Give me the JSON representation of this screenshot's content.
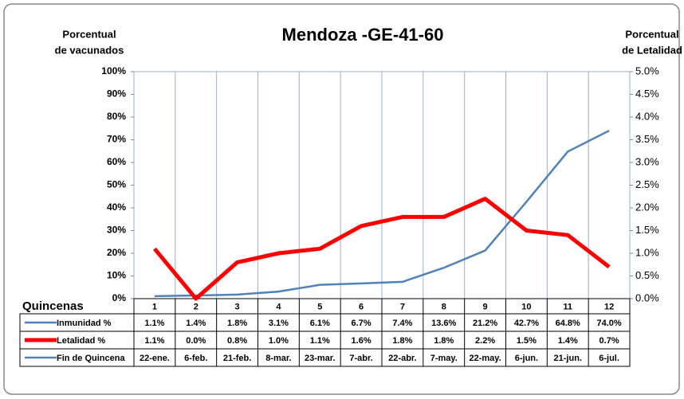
{
  "chart_data": {
    "type": "line",
    "title": "Mendoza -GE-41-60",
    "y_label_lines": [
      "Porcentual",
      "de vacunados"
    ],
    "y2_label_lines": [
      "Porcentual",
      "de Letalidad"
    ],
    "x_label": "Quincenas",
    "categories": [
      "1",
      "2",
      "3",
      "4",
      "5",
      "6",
      "7",
      "8",
      "9",
      "10",
      "11",
      "12"
    ],
    "series": [
      {
        "name": "Inmunidad  %",
        "color": "#4f81bd",
        "axis": "y",
        "values": [
          1.1,
          1.4,
          1.8,
          3.1,
          6.1,
          6.7,
          7.4,
          13.6,
          21.2,
          42.7,
          64.8,
          74.0
        ],
        "value_labels": [
          "1.1%",
          "1.4%",
          "1.8%",
          "3.1%",
          "6.1%",
          "6.7%",
          "7.4%",
          "13.6%",
          "21.2%",
          "42.7%",
          "64.8%",
          "74.0%"
        ]
      },
      {
        "name": "Letalidad %",
        "color": "#ff0000",
        "axis": "y2",
        "values": [
          1.1,
          0.0,
          0.8,
          1.0,
          1.1,
          1.6,
          1.8,
          1.8,
          2.2,
          1.5,
          1.4,
          0.7
        ],
        "value_labels": [
          "1.1%",
          "0.0%",
          "0.8%",
          "1.0%",
          "1.1%",
          "1.6%",
          "1.8%",
          "1.8%",
          "2.2%",
          "1.5%",
          "1.4%",
          "0.7%"
        ]
      }
    ],
    "date_row": {
      "name": "Fin de Quincena",
      "color": "#4f81bd",
      "values": [
        "22-ene.",
        "6-feb.",
        "21-feb.",
        "8-mar.",
        "23-mar.",
        "7-abr.",
        "22-abr.",
        "7-may.",
        "22-may.",
        "6-jun.",
        "21-jun.",
        "6-jul."
      ]
    },
    "ylim": [
      0,
      100
    ],
    "yticks": [
      {
        "value": 0,
        "label": "0%"
      },
      {
        "value": 10,
        "label": "10%"
      },
      {
        "value": 20,
        "label": "20%"
      },
      {
        "value": 30,
        "label": "30%"
      },
      {
        "value": 40,
        "label": "40%"
      },
      {
        "value": 50,
        "label": "50%"
      },
      {
        "value": 60,
        "label": "60%"
      },
      {
        "value": 70,
        "label": "70%"
      },
      {
        "value": 80,
        "label": "80%"
      },
      {
        "value": 90,
        "label": "90%"
      },
      {
        "value": 100,
        "label": "100%"
      }
    ],
    "y2lim": [
      0,
      5
    ],
    "y2ticks": [
      {
        "value": 0,
        "label": "0.0%"
      },
      {
        "value": 0.5,
        "label": "0.5%"
      },
      {
        "value": 1,
        "label": "1.0%"
      },
      {
        "value": 1.5,
        "label": "1.5%"
      },
      {
        "value": 2,
        "label": "2.0%"
      },
      {
        "value": 2.5,
        "label": "2.5%"
      },
      {
        "value": 3,
        "label": "3.0%"
      },
      {
        "value": 3.5,
        "label": "3.5%"
      },
      {
        "value": 4,
        "label": "4.0%"
      },
      {
        "value": 4.5,
        "label": "4.5%"
      },
      {
        "value": 5,
        "label": "5.0%"
      }
    ]
  }
}
